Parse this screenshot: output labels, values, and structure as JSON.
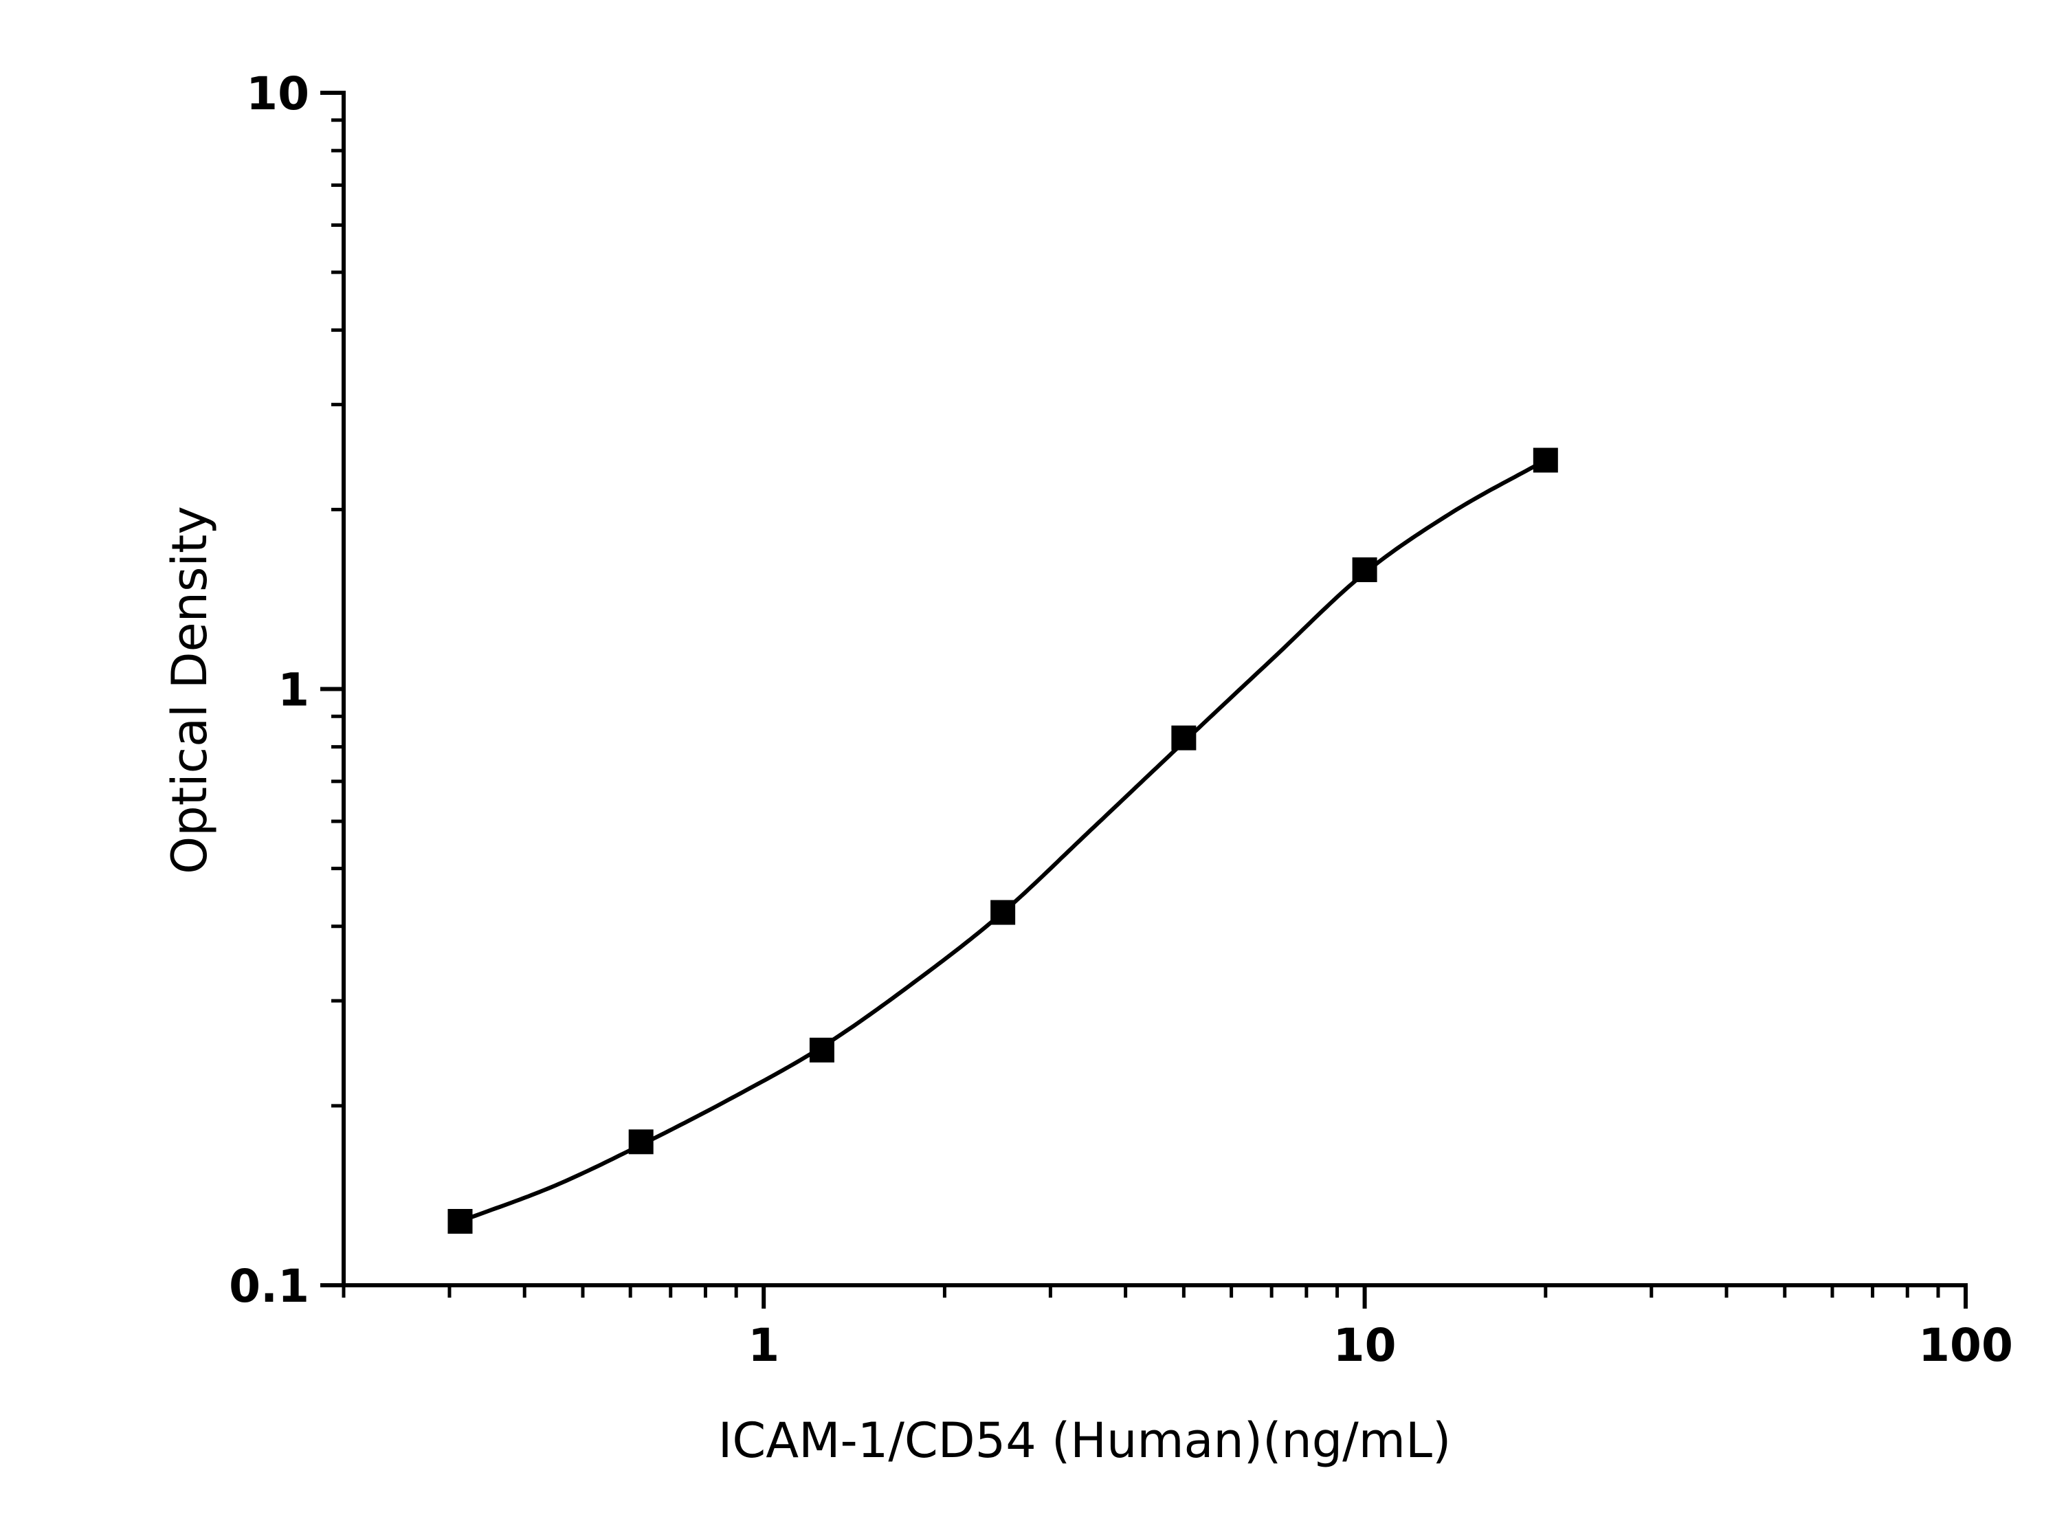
{
  "chart_data": {
    "type": "scatter",
    "title": "",
    "xlabel": "ICAM-1/CD54 (Human)(ng/mL)",
    "ylabel": "Optical Density",
    "xscale": "log",
    "yscale": "log",
    "xlim": [
      0.2,
      100
    ],
    "ylim": [
      0.1,
      10
    ],
    "x_tick_labels": [
      "1",
      "10",
      "100"
    ],
    "y_tick_labels": [
      "0.1",
      "1",
      "10"
    ],
    "grid": false,
    "legend": "none",
    "colors": {
      "marker": "#000000",
      "curve": "#000000",
      "axis": "#000000"
    },
    "series": [
      {
        "marker": "square",
        "points": [
          {
            "x": 0.3125,
            "y": 0.128
          },
          {
            "x": 0.625,
            "y": 0.174
          },
          {
            "x": 1.25,
            "y": 0.248
          },
          {
            "x": 2.5,
            "y": 0.422
          },
          {
            "x": 5,
            "y": 0.828
          },
          {
            "x": 10,
            "y": 1.585
          },
          {
            "x": 20,
            "y": 2.42
          }
        ]
      }
    ],
    "fit_curve": {
      "type": "4PL",
      "x_range": [
        0.3125,
        20
      ],
      "points": [
        {
          "x": 0.3125,
          "y": 0.128
        },
        {
          "x": 0.45,
          "y": 0.147
        },
        {
          "x": 0.625,
          "y": 0.172
        },
        {
          "x": 0.9,
          "y": 0.208
        },
        {
          "x": 1.25,
          "y": 0.251
        },
        {
          "x": 1.8,
          "y": 0.325
        },
        {
          "x": 2.5,
          "y": 0.422
        },
        {
          "x": 3.5,
          "y": 0.58
        },
        {
          "x": 5,
          "y": 0.815
        },
        {
          "x": 7,
          "y": 1.12
        },
        {
          "x": 10,
          "y": 1.565
        },
        {
          "x": 14,
          "y": 1.98
        },
        {
          "x": 20,
          "y": 2.42
        }
      ]
    }
  }
}
